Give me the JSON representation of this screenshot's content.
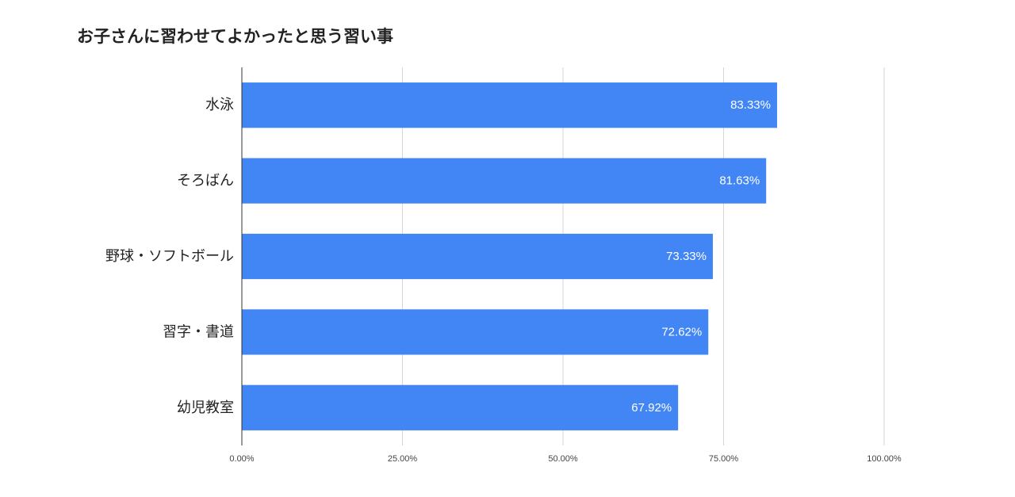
{
  "chart_data": {
    "type": "bar",
    "orientation": "horizontal",
    "title": "お子さんに習わせてよかったと思う習い事",
    "categories": [
      "水泳",
      "そろばん",
      "野球・ソフトボール",
      "習字・書道",
      "幼児教室"
    ],
    "values": [
      83.33,
      81.63,
      73.33,
      72.62,
      67.92
    ],
    "value_labels": [
      "83.33%",
      "81.63%",
      "73.33%",
      "72.62%",
      "67.92%"
    ],
    "xlim": [
      0,
      100
    ],
    "x_ticks": [
      0,
      25,
      50,
      75,
      100
    ],
    "x_tick_labels": [
      "0.00%",
      "25.00%",
      "50.00%",
      "75.00%",
      "100.00%"
    ],
    "grid": true,
    "legend": "none",
    "bar_color": "#4285F4"
  }
}
